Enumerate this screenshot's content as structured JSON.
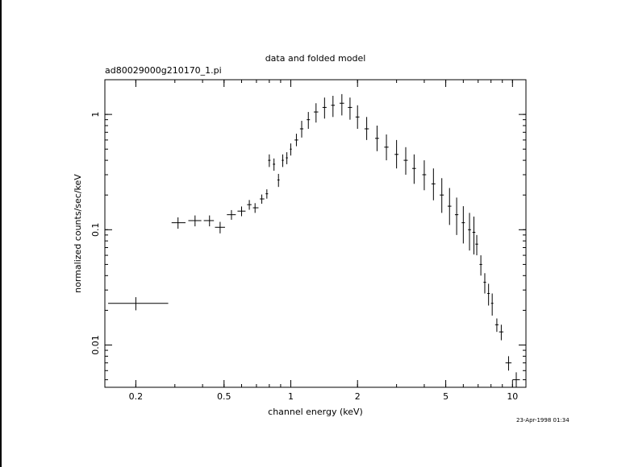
{
  "chart_data": {
    "type": "scatter",
    "title": "data and folded model",
    "subtitle": "ad80029000g210170_1.pi",
    "xlabel": "channel energy (keV)",
    "ylabel": "normalized counts/sec/keV",
    "xscale": "log",
    "yscale": "log",
    "xlim": [
      0.145,
      11.5
    ],
    "ylim": [
      0.0043,
      2.0
    ],
    "xticks": [
      {
        "value": 0.2,
        "label": "0.2"
      },
      {
        "value": 0.5,
        "label": "0.5"
      },
      {
        "value": 1,
        "label": "1"
      },
      {
        "value": 2,
        "label": "2"
      },
      {
        "value": 5,
        "label": "5"
      },
      {
        "value": 10,
        "label": "10"
      }
    ],
    "yticks": [
      {
        "value": 0.01,
        "label": "0.01"
      },
      {
        "value": 0.1,
        "label": "0.1"
      },
      {
        "value": 1,
        "label": "1"
      }
    ],
    "grid": false,
    "series": [
      {
        "x": [
          0.2,
          0.31,
          0.37,
          0.43,
          0.48,
          0.54,
          0.6,
          0.65,
          0.69,
          0.74,
          0.78,
          0.8,
          0.84,
          0.88,
          0.92,
          0.96,
          1.0,
          1.06,
          1.12,
          1.2,
          1.3,
          1.42,
          1.55,
          1.7,
          1.85,
          2.0,
          2.2,
          2.45,
          2.7,
          3.0,
          3.3,
          3.6,
          4.0,
          4.4,
          4.8,
          5.2,
          5.6,
          6.0,
          6.4,
          6.7,
          6.9,
          7.2,
          7.5,
          7.8,
          8.1,
          8.5,
          8.9,
          9.6,
          10.4
        ],
        "y": [
          0.023,
          0.115,
          0.12,
          0.12,
          0.105,
          0.135,
          0.145,
          0.165,
          0.155,
          0.185,
          0.205,
          0.4,
          0.37,
          0.27,
          0.4,
          0.42,
          0.5,
          0.6,
          0.75,
          0.9,
          1.05,
          1.15,
          1.2,
          1.25,
          1.15,
          0.95,
          0.75,
          0.62,
          0.52,
          0.45,
          0.4,
          0.34,
          0.3,
          0.25,
          0.2,
          0.16,
          0.135,
          0.115,
          0.1,
          0.095,
          0.075,
          0.05,
          0.035,
          0.028,
          0.023,
          0.015,
          0.013,
          0.007,
          0.005
        ],
        "xlo": [
          0.15,
          0.29,
          0.345,
          0.405,
          0.455,
          0.515,
          0.575,
          0.635,
          0.675,
          0.725,
          0.77,
          0.79,
          0.83,
          0.87,
          0.91,
          0.95,
          0.99,
          1.04,
          1.1,
          1.18,
          1.27,
          1.39,
          1.52,
          1.66,
          1.81,
          1.96,
          2.15,
          2.4,
          2.64,
          2.94,
          3.23,
          3.53,
          3.92,
          4.31,
          4.7,
          5.1,
          5.5,
          5.9,
          6.3,
          6.6,
          6.8,
          7.1,
          7.4,
          7.7,
          8.0,
          8.35,
          8.7,
          9.3,
          10.0
        ],
        "xhi": [
          0.28,
          0.335,
          0.395,
          0.45,
          0.505,
          0.565,
          0.625,
          0.665,
          0.715,
          0.76,
          0.79,
          0.81,
          0.85,
          0.89,
          0.93,
          0.97,
          1.01,
          1.08,
          1.14,
          1.22,
          1.33,
          1.45,
          1.58,
          1.74,
          1.89,
          2.04,
          2.25,
          2.5,
          2.76,
          3.06,
          3.37,
          3.67,
          4.08,
          4.49,
          4.9,
          5.3,
          5.7,
          6.1,
          6.5,
          6.8,
          7.0,
          7.3,
          7.6,
          7.9,
          8.2,
          8.65,
          9.1,
          9.9,
          10.8
        ],
        "ylo": [
          0.02,
          0.102,
          0.107,
          0.107,
          0.093,
          0.122,
          0.131,
          0.149,
          0.14,
          0.168,
          0.186,
          0.35,
          0.325,
          0.235,
          0.35,
          0.37,
          0.44,
          0.53,
          0.63,
          0.75,
          0.85,
          0.92,
          0.95,
          0.98,
          0.9,
          0.75,
          0.6,
          0.48,
          0.4,
          0.34,
          0.3,
          0.25,
          0.22,
          0.18,
          0.14,
          0.11,
          0.09,
          0.076,
          0.066,
          0.061,
          0.06,
          0.04,
          0.028,
          0.022,
          0.018,
          0.013,
          0.011,
          0.006,
          0.0043
        ],
        "yhi": [
          0.026,
          0.128,
          0.133,
          0.133,
          0.117,
          0.148,
          0.159,
          0.181,
          0.17,
          0.202,
          0.224,
          0.45,
          0.415,
          0.305,
          0.45,
          0.47,
          0.56,
          0.68,
          0.88,
          1.05,
          1.25,
          1.4,
          1.45,
          1.5,
          1.4,
          1.2,
          0.95,
          0.8,
          0.67,
          0.6,
          0.52,
          0.45,
          0.4,
          0.34,
          0.28,
          0.23,
          0.19,
          0.16,
          0.14,
          0.13,
          0.09,
          0.06,
          0.042,
          0.034,
          0.028,
          0.017,
          0.015,
          0.008,
          0.0058
        ]
      }
    ]
  },
  "timestamp": "23-Apr-1998 01:34"
}
